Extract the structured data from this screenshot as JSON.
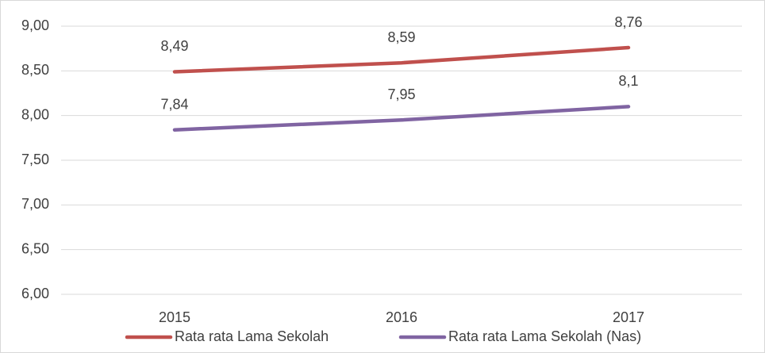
{
  "chart_data": {
    "type": "line",
    "categories": [
      "2015",
      "2016",
      "2017"
    ],
    "series": [
      {
        "name": "Rata rata Lama Sekolah",
        "color": "#c0504d",
        "values": [
          8.49,
          8.59,
          8.76
        ],
        "value_labels": [
          "8,49",
          "8,59",
          "8,76"
        ]
      },
      {
        "name": "Rata rata Lama Sekolah (Nas)",
        "color": "#8064a2",
        "values": [
          7.84,
          7.95,
          8.1
        ],
        "value_labels": [
          "7,84",
          "7,95",
          "8,1"
        ]
      }
    ],
    "ylim": [
      6,
      9
    ],
    "yticks": [
      {
        "value": 6,
        "label": "6,00"
      },
      {
        "value": 6.5,
        "label": "6,50"
      },
      {
        "value": 7,
        "label": "7,00"
      },
      {
        "value": 7.5,
        "label": "7,50"
      },
      {
        "value": 8,
        "label": "8,00"
      },
      {
        "value": 8.5,
        "label": "8,50"
      },
      {
        "value": 9,
        "label": "9,00"
      }
    ],
    "grid": true,
    "legend": "bottom"
  }
}
